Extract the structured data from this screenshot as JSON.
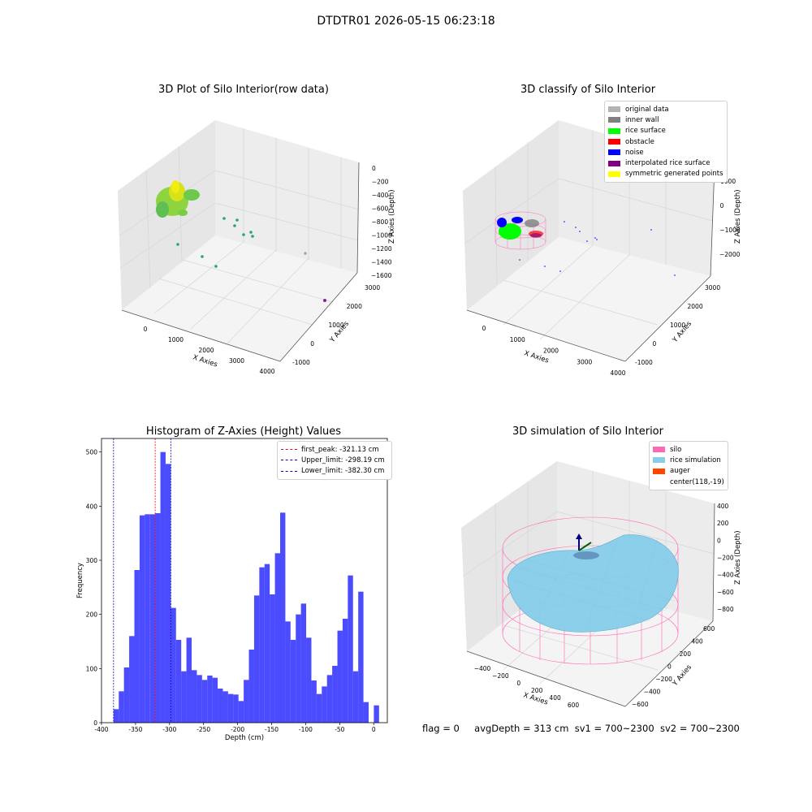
{
  "figure": {
    "title": "DTDTR01 2026-05-15 06:23:18",
    "footer": {
      "flag": "flag = 0",
      "avg_depth": "avgDepth = 313 cm",
      "sv1": "sv1 = 700~2300",
      "sv2": "sv2 = 700~2300"
    }
  },
  "panel_raw": {
    "title": "3D Plot of Silo Interior(row data)",
    "xlabel": "X Axies",
    "ylabel": "Y Axies",
    "zlabel": "Z Axies (Depth)",
    "x_ticks": [
      "0",
      "1000",
      "2000",
      "3000",
      "4000"
    ],
    "y_ticks": [
      "-1000",
      "0",
      "1000",
      "2000",
      "3000"
    ],
    "z_ticks": [
      "0",
      "−200",
      "−400",
      "−600",
      "−800",
      "−1000",
      "−1200",
      "−1400",
      "−1600"
    ]
  },
  "panel_classify": {
    "title": "3D classify of Silo Interior",
    "xlabel": "X Axies",
    "ylabel": "Y Axies",
    "zlabel": "Z Axies (Depth)",
    "x_ticks": [
      "0",
      "1000",
      "2000",
      "3000",
      "4000"
    ],
    "y_ticks": [
      "-1000",
      "0",
      "1000",
      "2000",
      "3000"
    ],
    "z_ticks": [
      "1000",
      "0",
      "−1000",
      "−2000"
    ],
    "legend": [
      {
        "label": "original data",
        "color": "#b3b3b3"
      },
      {
        "label": "inner wall",
        "color": "#808080"
      },
      {
        "label": "rice surface",
        "color": "#00ff00"
      },
      {
        "label": "obstacle",
        "color": "#ff0000"
      },
      {
        "label": "noise",
        "color": "#0000ff"
      },
      {
        "label": "interpolated rice surface",
        "color": "#800080"
      },
      {
        "label": "symmetric generated points",
        "color": "#ffff00"
      }
    ]
  },
  "panel_sim": {
    "title": "3D simulation of Silo Interior",
    "xlabel": "X Axies",
    "ylabel": "Y Axies",
    "zlabel": "Z Axies (Depth)",
    "x_ticks": [
      "−400",
      "−200",
      "0",
      "200",
      "400",
      "600"
    ],
    "y_ticks": [
      "−600",
      "−400",
      "−200",
      "0",
      "200",
      "400",
      "600"
    ],
    "z_ticks": [
      "400",
      "200",
      "0",
      "−200",
      "−400",
      "−600",
      "−800"
    ],
    "legend": [
      {
        "label": "silo",
        "color": "#ff69b4"
      },
      {
        "label": "rice simulation",
        "color": "#87ceeb"
      },
      {
        "label": "auger",
        "color": "#ff4500"
      },
      {
        "label": "center(118,-19)",
        "color": ""
      }
    ]
  },
  "chart_data": {
    "type": "bar",
    "title": "Histogram of Z-Axies (Height) Values",
    "xlabel": "Depth (cm)",
    "ylabel": "Frequency",
    "xlim": [
      -400,
      20
    ],
    "ylim": [
      0,
      525
    ],
    "x_ticks": [
      -400,
      -350,
      -300,
      -250,
      -200,
      -150,
      -100,
      -50,
      0
    ],
    "y_ticks": [
      0,
      100,
      200,
      300,
      400,
      500
    ],
    "bar_color": "#0000ff",
    "bin_width": 7.65,
    "bin_start": -382.3,
    "values": [
      25,
      58,
      102,
      160,
      282,
      383,
      385,
      385,
      387,
      500,
      478,
      212,
      153,
      95,
      157,
      97,
      88,
      79,
      87,
      83,
      63,
      58,
      53,
      52,
      40,
      79,
      135,
      235,
      287,
      293,
      237,
      313,
      388,
      187,
      153,
      200,
      220,
      157,
      78,
      53,
      67,
      88,
      105,
      170,
      192,
      272,
      95,
      242,
      38,
      0,
      32
    ],
    "lines": [
      {
        "label": "first_peak: -321.13 cm",
        "x": -321.13,
        "color": "#ff0000"
      },
      {
        "label": "Upper_limit: -298.19 cm",
        "x": -298.19,
        "color": "#0000cc"
      },
      {
        "label": "Lower_limit: -382.30 cm",
        "x": -382.3,
        "color": "#0000cc"
      }
    ]
  }
}
